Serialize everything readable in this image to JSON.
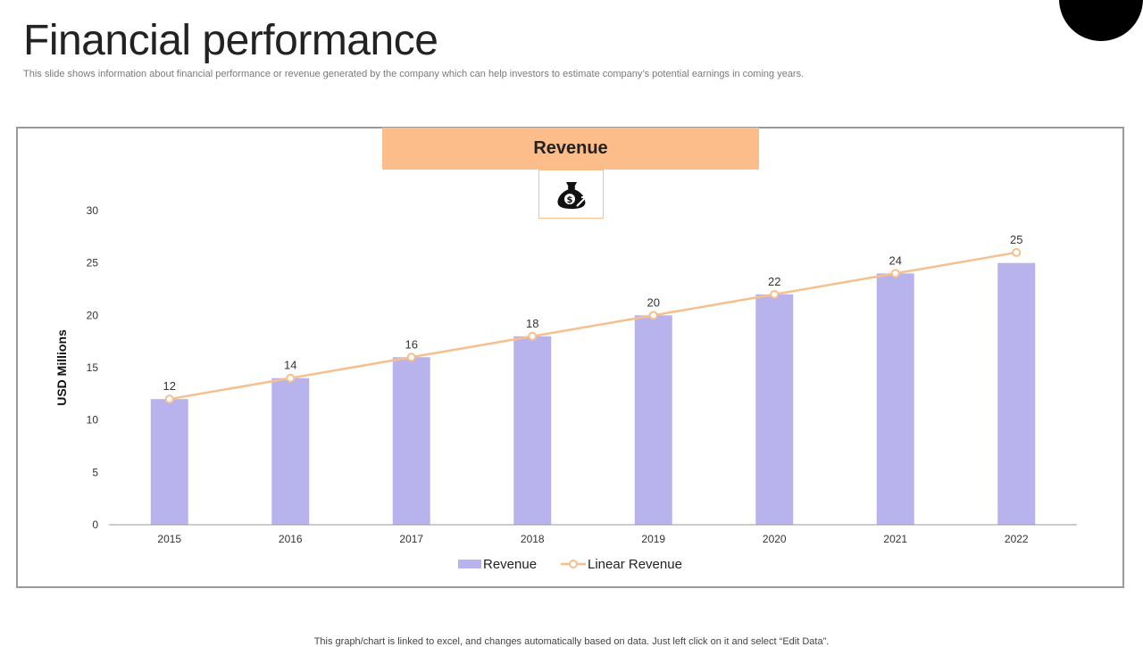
{
  "page": {
    "title": "Financial performance",
    "subtitle": "This slide shows information about financial performance or revenue generated by the company which can help investors to estimate company’s potential earnings in coming years.",
    "footer": "This graph/chart is linked to excel, and changes automatically based on data. Just left click on it and select “Edit Data”."
  },
  "chart_header": {
    "label": "Revenue",
    "icon": "money-bag-icon"
  },
  "colors": {
    "bar": "#b8b3ec",
    "line": "#f5c08e",
    "header": "#fdbd8b",
    "axis": "#9a9a9a"
  },
  "chart_data": {
    "type": "bar",
    "title": "Revenue",
    "xlabel": "",
    "ylabel": "USD Millions",
    "categories": [
      "2015",
      "2016",
      "2017",
      "2018",
      "2019",
      "2020",
      "2021",
      "2022"
    ],
    "series": [
      {
        "name": "Revenue",
        "type": "bar",
        "values": [
          12,
          14,
          16,
          18,
          20,
          22,
          24,
          25
        ]
      },
      {
        "name": "Linear Revenue",
        "type": "line",
        "values": [
          12,
          14,
          16,
          18,
          20,
          22,
          24,
          26
        ]
      }
    ],
    "data_labels": [
      12,
      14,
      16,
      18,
      20,
      22,
      24,
      25
    ],
    "ylim": [
      0,
      30
    ],
    "yticks": [
      0,
      5,
      10,
      15,
      20,
      25,
      30
    ],
    "grid": false,
    "legend": "bottom"
  }
}
